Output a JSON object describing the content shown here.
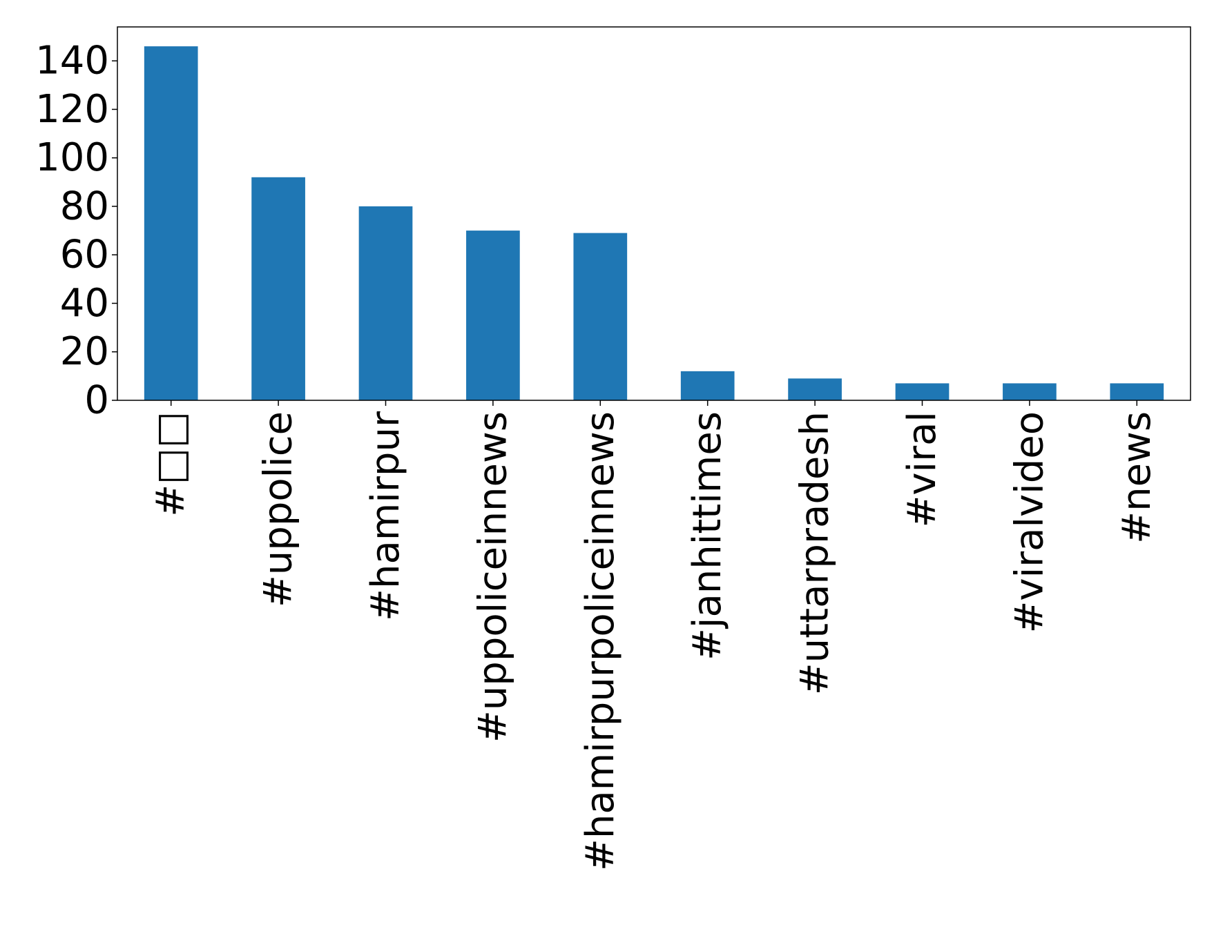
{
  "chart_data": {
    "type": "bar",
    "title": "",
    "xlabel": "",
    "ylabel": "",
    "categories": [
      "#□□",
      "#uppolice",
      "#hamirpur",
      "#uppoliceinnews",
      "#hamirpurpoliceinnews",
      "#janhittimes",
      "#uttarpradesh",
      "#viral",
      "#viralvideo",
      "#news"
    ],
    "values": [
      146,
      92,
      80,
      70,
      69,
      12,
      9,
      7,
      7,
      7
    ],
    "ylim": [
      0,
      154
    ],
    "yticks": [
      0,
      20,
      40,
      60,
      80,
      100,
      120,
      140
    ],
    "bar_color": "#1f77b4",
    "grid": false,
    "legend": "none"
  }
}
